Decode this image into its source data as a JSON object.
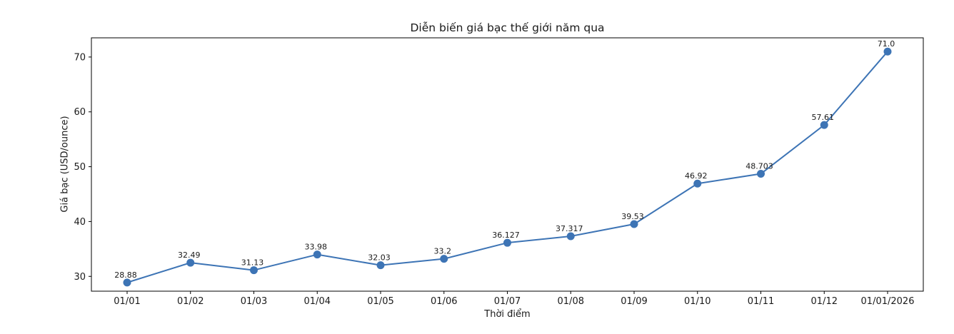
{
  "chart_data": {
    "type": "line",
    "title": "Diễn biến giá bạc thế giới năm qua",
    "xlabel": "Thời điểm",
    "ylabel": "Giá bạc (USD/ounce)",
    "categories": [
      "01/01",
      "01/02",
      "01/03",
      "01/04",
      "01/05",
      "01/06",
      "01/07",
      "01/08",
      "01/09",
      "01/10",
      "01/11",
      "01/12",
      "01/01/2026"
    ],
    "values": [
      28.88,
      32.49,
      31.13,
      33.98,
      32.03,
      33.2,
      36.127,
      37.317,
      39.53,
      46.92,
      48.703,
      57.61,
      71.0
    ],
    "point_labels": [
      "28.88",
      "32.49",
      "31.13",
      "33.98",
      "32.03",
      "33.2",
      "36.127",
      "37.317",
      "39.53",
      "46.92",
      "48.703",
      "57.61",
      "71.0"
    ],
    "yticks": [
      30,
      40,
      50,
      60,
      70
    ],
    "ylim": [
      27.3,
      73.5
    ],
    "grid": false,
    "legend_position": "none",
    "line_color": "#3d74b5",
    "marker_color": "#3d74b5",
    "axis_color": "#000000",
    "background_color": "#ffffff"
  }
}
